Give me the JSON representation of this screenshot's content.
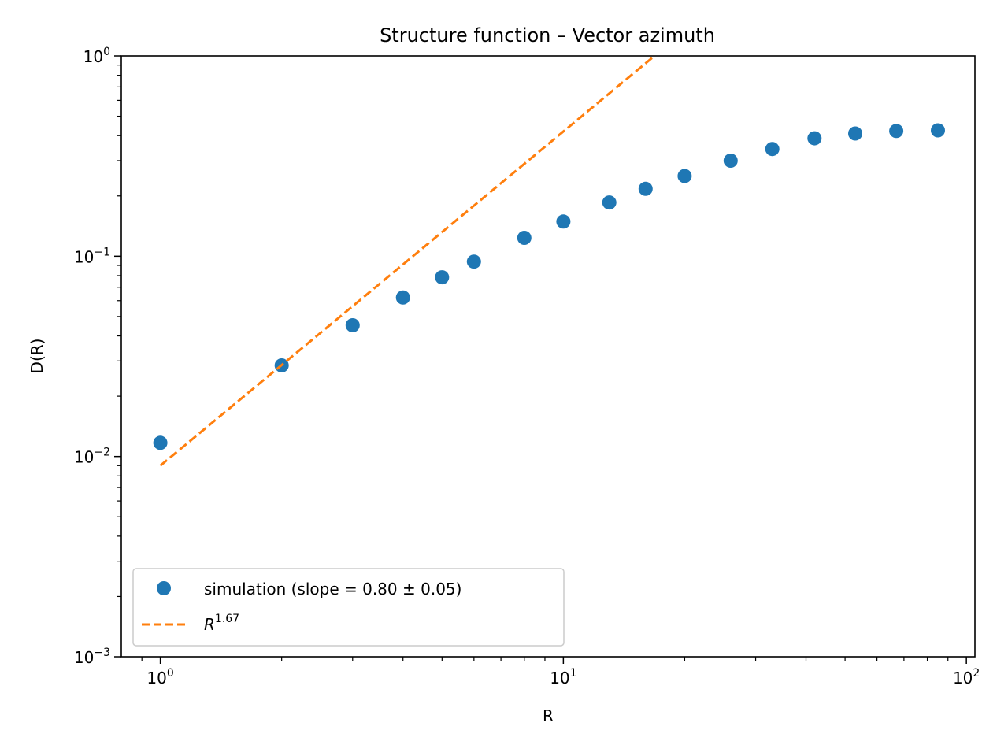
{
  "chart_data": {
    "type": "scatter",
    "title": "Structure function – Vector azimuth",
    "xlabel": "R",
    "ylabel": "D(R)",
    "xscale": "log",
    "yscale": "log",
    "xlim": [
      0.8,
      105
    ],
    "ylim": [
      0.001,
      1
    ],
    "x_ticks": [
      {
        "value": 1,
        "base": "10",
        "exp": "0"
      },
      {
        "value": 10,
        "base": "10",
        "exp": "1"
      },
      {
        "value": 100,
        "base": "10",
        "exp": "2"
      }
    ],
    "y_ticks": [
      {
        "value": 0.001,
        "base": "10",
        "exp": "−3"
      },
      {
        "value": 0.01,
        "base": "10",
        "exp": "−2"
      },
      {
        "value": 0.1,
        "base": "10",
        "exp": "−1"
      },
      {
        "value": 1,
        "base": "10",
        "exp": "0"
      }
    ],
    "grid": false,
    "legend_position": "lower-left",
    "series": [
      {
        "name": "simulation (slope = 0.80 ± 0.05)",
        "kind": "scatter",
        "color": "#1f77b4",
        "x": [
          1,
          2,
          3,
          4,
          5,
          6,
          8,
          10,
          13,
          16,
          20,
          26,
          33,
          42,
          53,
          67,
          85
        ],
        "y": [
          0.0117,
          0.0285,
          0.0452,
          0.0622,
          0.0785,
          0.094,
          0.1235,
          0.149,
          0.1855,
          0.217,
          0.2515,
          0.3,
          0.343,
          0.388,
          0.41,
          0.422,
          0.425
        ]
      },
      {
        "name_base": "R",
        "name_exp": "1.67",
        "kind": "line",
        "style": "dashed",
        "color": "#ff7f0e",
        "x": [
          1,
          16.83
        ],
        "y": [
          0.009,
          1.0
        ]
      }
    ]
  }
}
